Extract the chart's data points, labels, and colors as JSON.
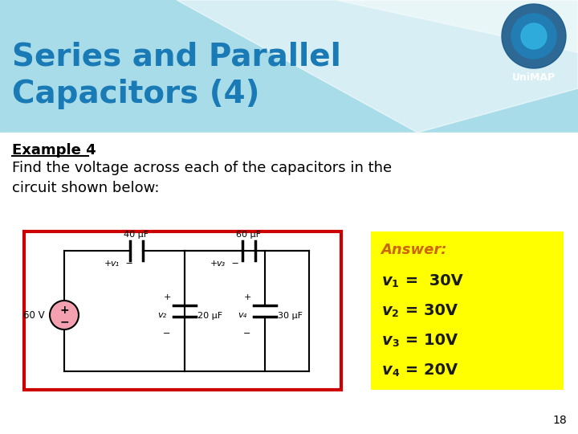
{
  "title_line1": "Series and Parallel",
  "title_line2": "Capacitors (4)",
  "title_color": "#1a7ab5",
  "bg_color": "#ffffff",
  "header_color": "#a8dce8",
  "example_label": "Example 4",
  "body_text": "Find the voltage across each of the capacitors in the\ncircuit shown below:",
  "answer_box_bg": "#ffff00",
  "answer_title": "Answer:",
  "answer_entries": [
    {
      "v": "v",
      "sub": "1",
      "rest": " =  30V"
    },
    {
      "v": "v",
      "sub": "2",
      "rest": " = 30V"
    },
    {
      "v": "v",
      "sub": "3",
      "rest": " = 10V"
    },
    {
      "v": "v",
      "sub": "4",
      "rest": " = 20V"
    }
  ],
  "circuit_box_color": "#cc0000",
  "page_number": "18",
  "unimap_text": "UniMAP",
  "battery_color": "#f4a0b0",
  "black": "#000000",
  "answer_title_color": "#cc6600",
  "answer_text_color": "#1a1a1a"
}
